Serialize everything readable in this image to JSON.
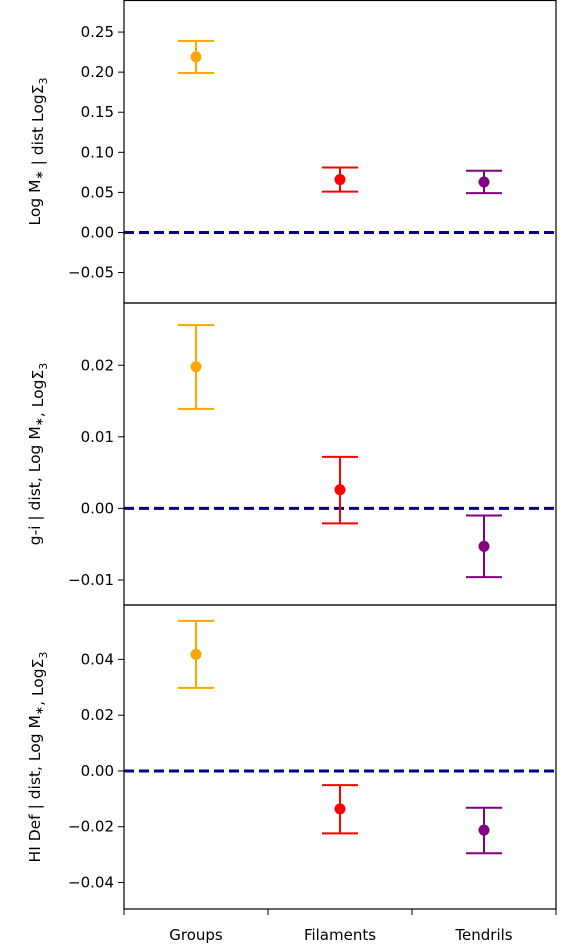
{
  "chart_data": {
    "type": "scatter",
    "categories": [
      "Groups",
      "Filaments",
      "Tendrils"
    ],
    "colors": [
      "#ffa500",
      "#ff0000",
      "#800080"
    ],
    "reference_line": {
      "y": 0.0,
      "color": "#00008b",
      "style": "dashed"
    },
    "panels": [
      {
        "ylabel": "Log M∗ | dist LogΣ3",
        "ylim": [
          -0.088,
          0.29
        ],
        "yticks": [
          -0.05,
          0.0,
          0.05,
          0.1,
          0.15,
          0.2,
          0.25
        ],
        "ytick_labels": [
          "−0.05",
          "0.00",
          "0.05",
          "0.10",
          "0.15",
          "0.20",
          "0.25"
        ],
        "values": [
          0.219,
          0.066,
          0.063
        ],
        "err_low": [
          0.199,
          0.051,
          0.049
        ],
        "err_high": [
          0.239,
          0.081,
          0.077
        ]
      },
      {
        "ylabel": "g-i | dist, Log M∗, LogΣ3",
        "ylim": [
          -0.0135,
          0.0287
        ],
        "yticks": [
          -0.01,
          0.0,
          0.01,
          0.02
        ],
        "ytick_labels": [
          "−0.01",
          "0.00",
          "0.01",
          "0.02"
        ],
        "values": [
          0.0198,
          0.0026,
          -0.0053
        ],
        "err_low": [
          0.0139,
          -0.0021,
          -0.0096
        ],
        "err_high": [
          0.0256,
          0.0072,
          -0.001
        ]
      },
      {
        "ylabel": "HI Def | dist, Log M∗, LogΣ3",
        "ylim": [
          -0.0495,
          0.0595
        ],
        "yticks": [
          -0.04,
          -0.02,
          0.0,
          0.02,
          0.04
        ],
        "ytick_labels": [
          "−0.04",
          "−0.02",
          "0.00",
          "0.02",
          "0.04"
        ],
        "values": [
          0.0418,
          -0.0136,
          -0.0212
        ],
        "err_low": [
          0.0298,
          -0.0224,
          -0.0295
        ],
        "err_high": [
          0.0538,
          -0.0051,
          -0.0132
        ]
      }
    ]
  }
}
